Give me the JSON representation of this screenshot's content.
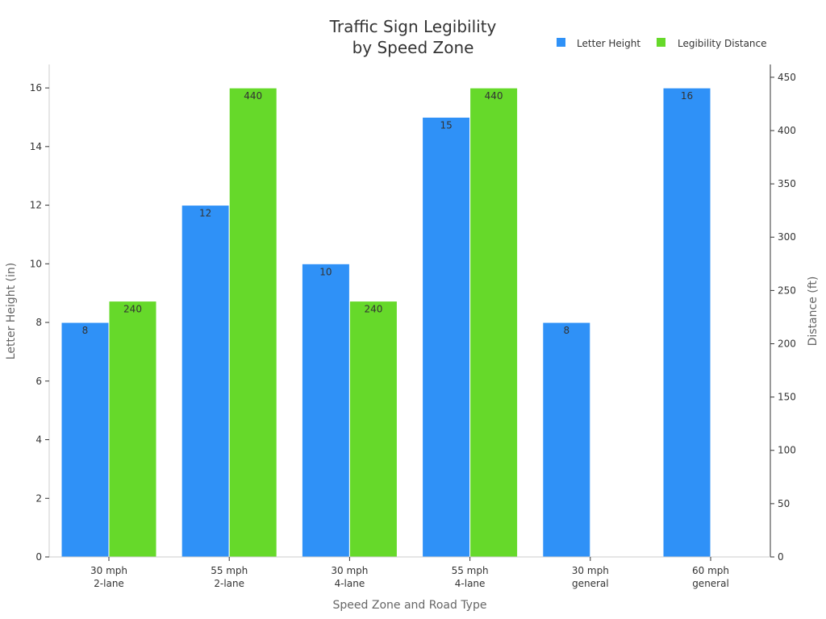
{
  "chart_data": {
    "type": "bar",
    "title": [
      "Traffic Sign Legibility",
      "by Speed Zone"
    ],
    "xlabel": "Speed Zone and Road Type",
    "ylabel_left": "Letter Height (in)",
    "ylabel_right": "Distance (ft)",
    "categories": [
      [
        "30 mph",
        "2-lane"
      ],
      [
        "55 mph",
        "2-lane"
      ],
      [
        "30 mph",
        "4-lane"
      ],
      [
        "55 mph",
        "4-lane"
      ],
      [
        "30 mph",
        "general"
      ],
      [
        "60 mph",
        "general"
      ]
    ],
    "series": [
      {
        "name": "Letter Height",
        "axis": "left",
        "color": "#2f91f7",
        "values": [
          8,
          12,
          10,
          15,
          8,
          16
        ]
      },
      {
        "name": "Legibility Distance",
        "axis": "right",
        "color": "#66d92a",
        "values": [
          240,
          440,
          240,
          440,
          null,
          null
        ]
      }
    ],
    "ylim_left": [
      0,
      16.8
    ],
    "ylim_right": [
      0,
      462
    ],
    "yticks_left": [
      0,
      2,
      4,
      6,
      8,
      10,
      12,
      14,
      16
    ],
    "yticks_right": [
      0,
      50,
      100,
      150,
      200,
      250,
      300,
      350,
      400,
      450
    ],
    "legend_position": "top-right",
    "grid": false
  }
}
